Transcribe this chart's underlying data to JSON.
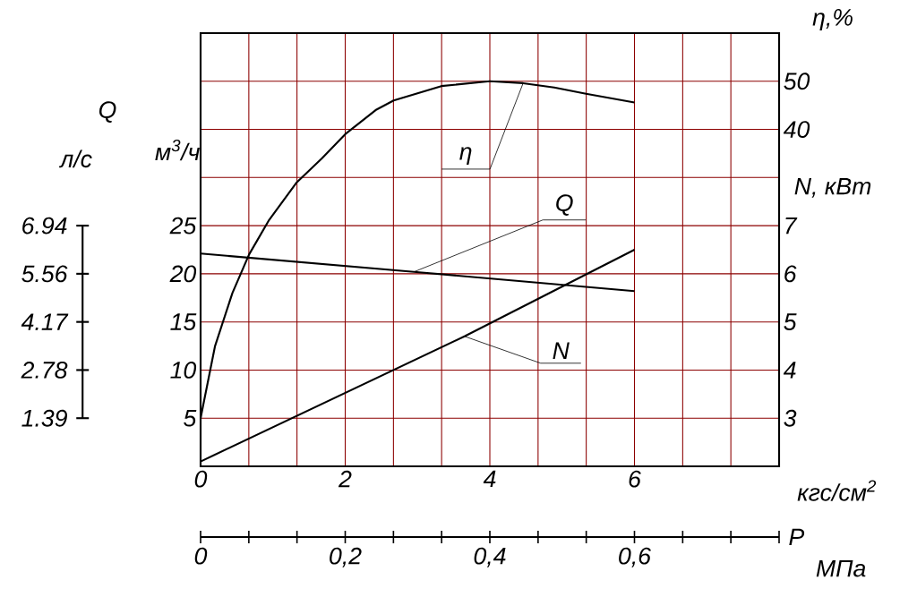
{
  "chart_data": {
    "type": "line",
    "xlabel": "кгс/см$^{2}$",
    "ylabel": "м$^{3}$/ч",
    "y2label": "η,%",
    "y3label": "N, кВт",
    "x2label": "МПа",
    "annotations": [
      "Q",
      "P",
      "л/с",
      "1.39",
      "2.78",
      "4.17",
      "5.56",
      "6.94"
    ],
    "xlim": [
      0,
      8
    ],
    "xticks": [
      0,
      {
        "value": 0.667,
        "label": null
      },
      {
        "value": 1.333,
        "label": null
      },
      2,
      {
        "value": 2.667,
        "label": null
      },
      {
        "value": 3.333,
        "label": null
      },
      4,
      {
        "value": 4.667,
        "label": null
      },
      {
        "value": 5.333,
        "label": null
      },
      6,
      {
        "value": 6.667,
        "label": null
      },
      {
        "value": 7.333,
        "label": null
      },
      {
        "value": 8,
        "label": null
      }
    ],
    "ylim": [
      0,
      45
    ],
    "yticks": [
      5,
      10,
      15,
      20,
      25,
      {
        "value": 30,
        "label": null
      },
      {
        "value": 35,
        "label": null
      },
      {
        "value": 40,
        "label": null
      }
    ],
    "y2lim": [
      -30,
      60
    ],
    "y2ticks": [
      40,
      50
    ],
    "y3lim": [
      2,
      11
    ],
    "y3ticks": [
      3,
      4,
      5,
      6,
      7
    ],
    "x2lim": [
      0,
      0.8
    ],
    "x2ticks": [
      0,
      {
        "value": 0.0667,
        "label": null
      },
      {
        "value": 0.1333,
        "label": null
      },
      {
        "value": 0.2,
        "label": "0,2"
      },
      {
        "value": 0.2667,
        "label": null
      },
      {
        "value": 0.3333,
        "label": null
      },
      {
        "value": 0.4,
        "label": "0,4"
      },
      {
        "value": 0.4667,
        "label": null
      },
      {
        "value": 0.5333,
        "label": null
      },
      {
        "value": 0.6,
        "label": "0,6"
      },
      {
        "value": 0.6667,
        "label": null
      },
      {
        "value": 0.7333,
        "label": null
      },
      {
        "value": 0.8,
        "label": null
      }
    ],
    "grid": true,
    "series": [
      {
        "name": "η",
        "axis": "y2",
        "color": "#000000",
        "x": [
          0,
          0.2,
          0.44,
          0.67,
          0.94,
          1.33,
          1.68,
          2.0,
          2.42,
          2.67,
          3.33,
          4.0,
          4.46,
          4.89,
          5.33,
          6.0
        ],
        "values": [
          -20,
          -5,
          6,
          14,
          21,
          29,
          34,
          39,
          44,
          46,
          49,
          50,
          49.6,
          48.7,
          47.4,
          45.6
        ]
      },
      {
        "name": "Q",
        "color": "#000000",
        "x": [
          0,
          2.95,
          6
        ],
        "values": [
          22.1,
          20.2,
          18.2
        ]
      },
      {
        "name": "N",
        "axis": "y3",
        "color": "#000000",
        "x": [
          0,
          3.65,
          6
        ],
        "values": [
          2.1,
          4.7,
          6.5
        ]
      }
    ]
  }
}
